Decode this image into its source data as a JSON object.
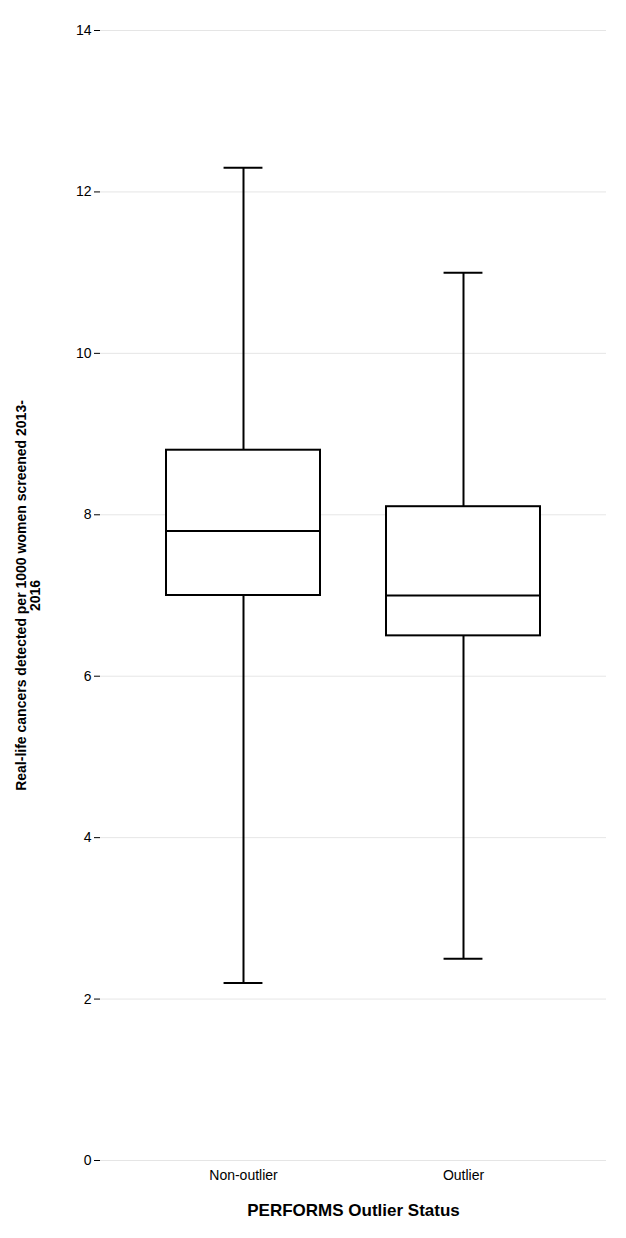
{
  "chart_data": {
    "type": "box",
    "categories": [
      "Non-outlier",
      "Outlier"
    ],
    "whisker_low": [
      2.2,
      2.5
    ],
    "q1": [
      7.0,
      6.5
    ],
    "median": [
      7.8,
      7.0
    ],
    "q3": [
      8.8,
      8.1
    ],
    "whisker_high": [
      12.3,
      11.0
    ],
    "ylabel": "Real-life cancers detected per 1000 women screened 2013-\n2016",
    "xlabel": "PERFORMS Outlier Status",
    "ylim": [
      0,
      14
    ],
    "yticks": [
      0,
      2,
      4,
      6,
      8,
      10,
      12,
      14
    ],
    "grid": true
  }
}
